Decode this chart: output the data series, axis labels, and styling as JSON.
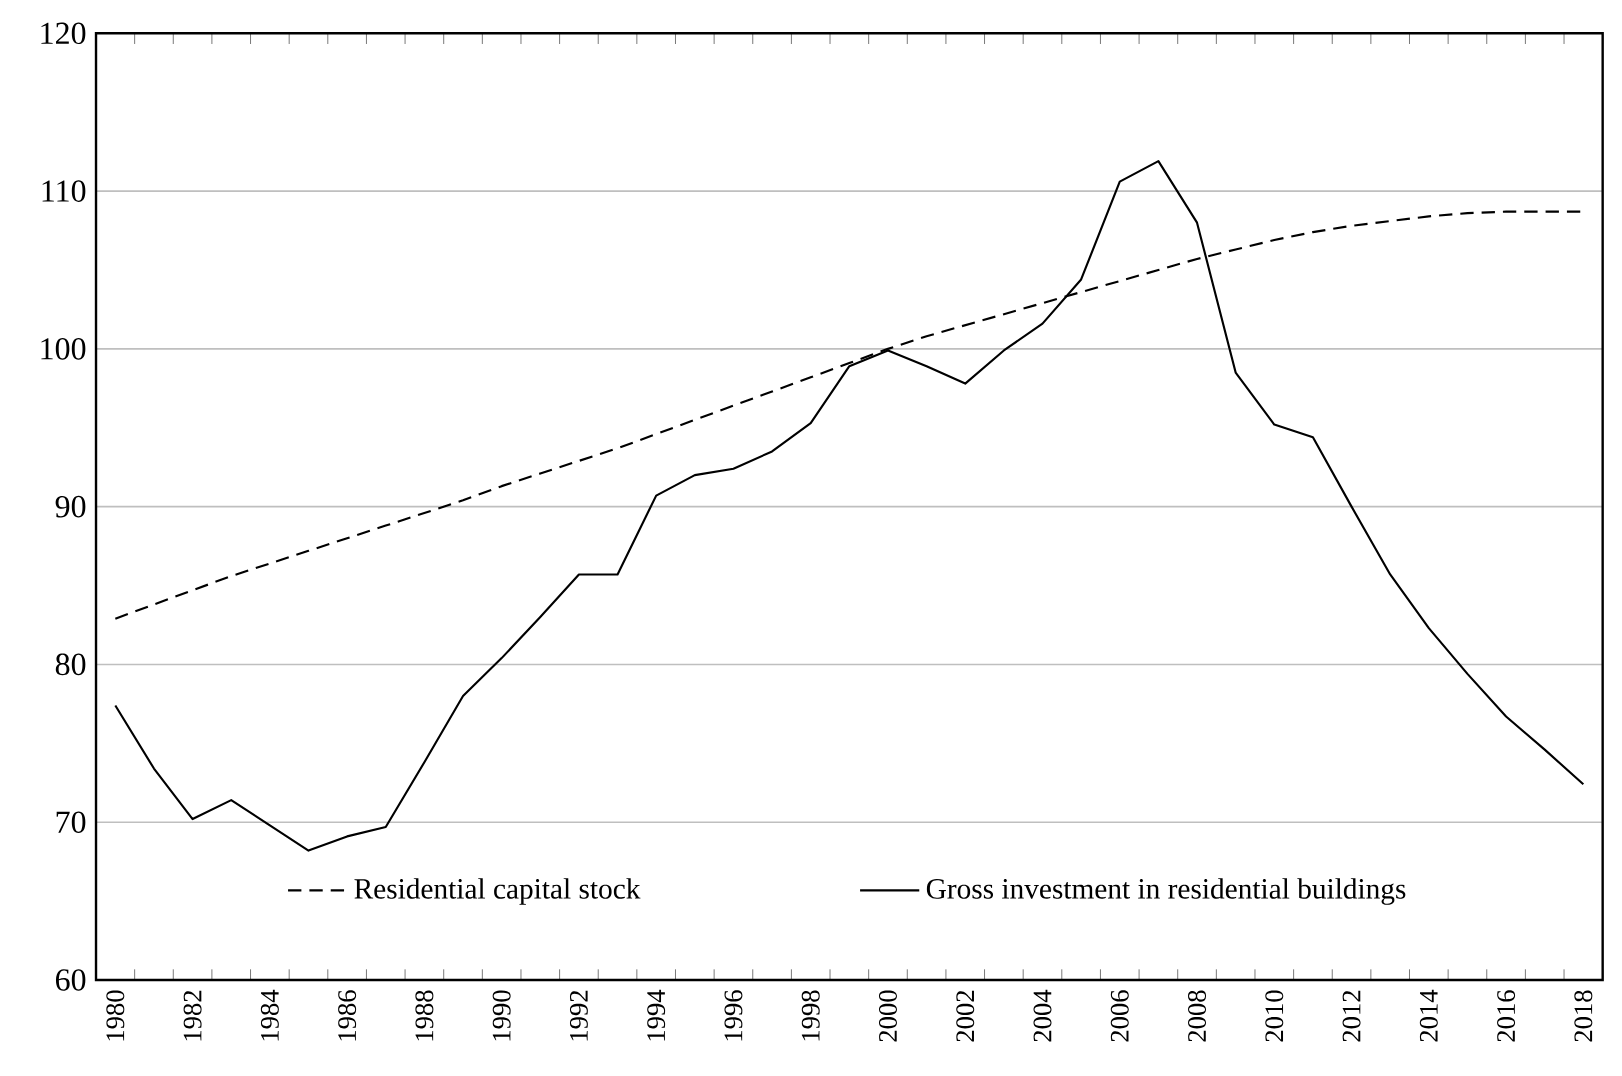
{
  "chart_data": {
    "type": "line",
    "categories": [
      "1980",
      null,
      "1982",
      null,
      "1984",
      null,
      "1986",
      null,
      "1988",
      null,
      "1990",
      null,
      "1992",
      null,
      "1994",
      null,
      "1996",
      null,
      "1998",
      null,
      "2000",
      null,
      "2002",
      null,
      "2004",
      null,
      "2006",
      null,
      "2008",
      null,
      "2010",
      null,
      "2012",
      null,
      "2014",
      null,
      "2016",
      null,
      "2018"
    ],
    "series": [
      {
        "name": "Residential capital stock",
        "color": "#000000",
        "line_style": "dashed",
        "values": [
          82.9,
          83.8,
          84.7,
          85.6,
          86.4,
          87.2,
          88.0,
          88.8,
          89.6,
          90.4,
          91.3,
          92.1,
          92.9,
          93.7,
          94.6,
          95.5,
          96.4,
          97.3,
          98.2,
          99.1,
          100.0,
          100.8,
          101.5,
          102.2,
          102.9,
          103.6,
          104.3,
          105.0,
          105.7,
          106.3,
          106.9,
          107.4,
          107.8,
          108.1,
          108.4,
          108.6,
          108.7,
          108.7,
          108.7
        ]
      },
      {
        "name": "Gross investment in residential buildings",
        "color": "#000000",
        "line_style": "solid",
        "values": [
          77.4,
          73.4,
          70.2,
          71.4,
          69.8,
          68.2,
          69.1,
          69.7,
          73.8,
          78.0,
          80.4,
          83.0,
          85.7,
          85.7,
          90.7,
          92.0,
          92.4,
          93.5,
          95.3,
          98.9,
          99.9,
          98.9,
          97.8,
          99.9,
          101.6,
          104.4,
          110.6,
          111.9,
          108.0,
          98.5,
          95.2,
          94.4,
          90.0,
          85.7,
          82.3,
          79.4,
          76.7,
          74.6,
          72.4
        ]
      }
    ],
    "ylim": [
      60,
      120
    ],
    "yticks": [
      60,
      70,
      80,
      90,
      100,
      110,
      120
    ],
    "grid": "y",
    "legend": "bottom"
  }
}
